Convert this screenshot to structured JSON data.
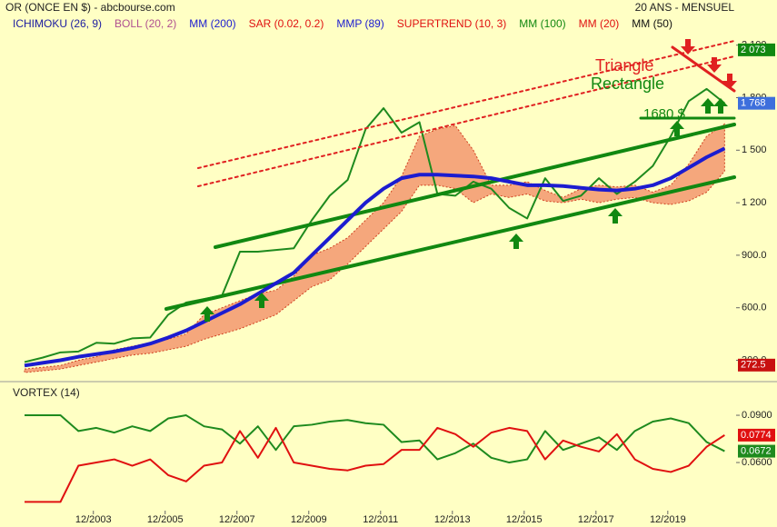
{
  "chart_data": [
    {
      "type": "line",
      "title": "OR (ONCE EN $) - abcbourse.com",
      "period": "20 ANS - MENSUEL",
      "indicators": [
        {
          "name": "ICHIMOKU (26, 9)",
          "color": "#1c1ca0"
        },
        {
          "name": "BOLL (20, 2)",
          "color": "#b05090"
        },
        {
          "name": "MM (200)",
          "color": "#1c1cd0"
        },
        {
          "name": "SAR (0.02, 0.2)",
          "color": "#e01010"
        },
        {
          "name": "MMP (89)",
          "color": "#1c1cd0"
        },
        {
          "name": "SUPERTREND (10, 3)",
          "color": "#e01010"
        },
        {
          "name": "MM (100)",
          "color": "#118811"
        },
        {
          "name": "MM (20)",
          "color": "#e01010"
        },
        {
          "name": "MM (50)",
          "color": "#111111"
        }
      ],
      "annotations": [
        "Triangle",
        "Rectangle",
        "1680 $"
      ],
      "x": [
        2002.0,
        2002.5,
        2003.0,
        2003.5,
        2004.0,
        2004.5,
        2005.0,
        2005.5,
        2006.0,
        2006.5,
        2007.0,
        2007.5,
        2008.0,
        2008.5,
        2009.0,
        2009.5,
        2010.0,
        2010.5,
        2011.0,
        2011.5,
        2012.0,
        2012.5,
        2013.0,
        2013.5,
        2014.0,
        2014.5,
        2015.0,
        2015.5,
        2016.0,
        2016.5,
        2017.0,
        2017.5,
        2018.0,
        2018.5,
        2019.0,
        2019.5,
        2020.0,
        2020.5,
        2021.0,
        2021.5
      ],
      "price": {
        "color": "#1e8a1e",
        "values": [
          290,
          315,
          345,
          350,
          400,
          395,
          425,
          430,
          560,
          630,
          650,
          670,
          920,
          920,
          930,
          940,
          1100,
          1240,
          1330,
          1620,
          1740,
          1600,
          1660,
          1250,
          1240,
          1320,
          1280,
          1170,
          1110,
          1340,
          1210,
          1240,
          1340,
          1250,
          1320,
          1410,
          1580,
          1780,
          1850,
          1768
        ]
      },
      "cloud": {
        "color": "#f5a77c",
        "upper": [
          250,
          260,
          270,
          300,
          320,
          360,
          380,
          400,
          420,
          450,
          560,
          600,
          640,
          680,
          700,
          780,
          900,
          940,
          1000,
          1100,
          1200,
          1350,
          1580,
          1620,
          1640,
          1500,
          1300,
          1300,
          1320,
          1270,
          1230,
          1280,
          1300,
          1290,
          1300,
          1260,
          1300,
          1420,
          1580,
          1650
        ],
        "lower": [
          230,
          240,
          250,
          270,
          290,
          310,
          330,
          340,
          360,
          380,
          420,
          450,
          480,
          520,
          560,
          640,
          720,
          760,
          850,
          950,
          1050,
          1150,
          1300,
          1300,
          1280,
          1200,
          1250,
          1230,
          1250,
          1210,
          1200,
          1220,
          1200,
          1220,
          1230,
          1200,
          1190,
          1210,
          1260,
          1380
        ]
      },
      "series": [
        {
          "name": "MM (200)",
          "color": "#1c1cd0",
          "values": [
            270,
            285,
            300,
            320,
            335,
            350,
            370,
            395,
            430,
            470,
            520,
            570,
            620,
            680,
            740,
            800,
            900,
            1000,
            1100,
            1200,
            1280,
            1340,
            1360,
            1360,
            1355,
            1350,
            1340,
            1320,
            1300,
            1300,
            1295,
            1285,
            1275,
            1270,
            1280,
            1300,
            1340,
            1400,
            1460,
            1510
          ]
        }
      ],
      "markers": [
        {
          "value": 2073,
          "label": "2 073",
          "color": "#118811"
        },
        {
          "value": 1768,
          "label": "1 768",
          "color": "#3d6fdc"
        },
        {
          "value": 272.5,
          "label": "272.5",
          "color": "#c81010"
        }
      ],
      "xlim": [
        2001.62,
        2021.82
      ],
      "ylim": [
        230,
        2280
      ],
      "yticks": [
        {
          "value": 300,
          "label": "300.0"
        },
        {
          "value": 600,
          "label": "600.0"
        },
        {
          "value": 900,
          "label": "900.0"
        },
        {
          "value": 1200,
          "label": "1 200"
        },
        {
          "value": 1500,
          "label": "1 500"
        },
        {
          "value": 1800,
          "label": "1 800"
        },
        {
          "value": 2100,
          "label": "2 100"
        }
      ]
    },
    {
      "type": "line",
      "title": "VORTEX (14)",
      "x": [
        2002.0,
        2002.5,
        2003.0,
        2003.5,
        2004.0,
        2004.5,
        2005.0,
        2005.5,
        2006.0,
        2006.5,
        2007.0,
        2007.5,
        2008.0,
        2008.5,
        2009.0,
        2009.5,
        2010.0,
        2010.5,
        2011.0,
        2011.5,
        2012.0,
        2012.5,
        2013.0,
        2013.5,
        2014.0,
        2014.5,
        2015.0,
        2015.5,
        2016.0,
        2016.5,
        2017.0,
        2017.5,
        2018.0,
        2018.5,
        2019.0,
        2019.5,
        2020.0,
        2020.5,
        2021.0,
        2021.5
      ],
      "series": [
        {
          "color": "#1e8a1e",
          "values": [
            0.09,
            0.09,
            0.09,
            0.08,
            0.082,
            0.079,
            0.083,
            0.08,
            0.088,
            0.09,
            0.083,
            0.081,
            0.072,
            0.083,
            0.068,
            0.083,
            0.084,
            0.086,
            0.087,
            0.085,
            0.084,
            0.073,
            0.074,
            0.062,
            0.066,
            0.072,
            0.063,
            0.06,
            0.062,
            0.08,
            0.068,
            0.072,
            0.076,
            0.068,
            0.08,
            0.086,
            0.088,
            0.085,
            0.073,
            0.0672
          ]
        },
        {
          "color": "#e01010",
          "values": [
            0.035,
            0.035,
            0.035,
            0.058,
            0.06,
            0.062,
            0.058,
            0.062,
            0.052,
            0.048,
            0.058,
            0.06,
            0.08,
            0.063,
            0.082,
            0.06,
            0.058,
            0.056,
            0.055,
            0.058,
            0.059,
            0.068,
            0.068,
            0.082,
            0.078,
            0.07,
            0.079,
            0.082,
            0.08,
            0.062,
            0.074,
            0.07,
            0.067,
            0.078,
            0.062,
            0.056,
            0.054,
            0.058,
            0.07,
            0.0774
          ]
        }
      ],
      "markers": [
        {
          "value": 0.0774,
          "label": "0.0774",
          "color": "#e01010"
        },
        {
          "value": 0.0672,
          "label": "0.0672",
          "color": "#1e8a1e"
        }
      ],
      "xlim": [
        2001.62,
        2021.82
      ],
      "ylim": [
        0.0306,
        0.0981
      ],
      "yticks": [
        {
          "value": 0.06,
          "label": "0.0600"
        },
        {
          "value": 0.09,
          "label": "0.0900"
        }
      ],
      "xticks": [
        {
          "value": 2003.917,
          "label": "12/2003"
        },
        {
          "value": 2005.917,
          "label": "12/2005"
        },
        {
          "value": 2007.917,
          "label": "12/2007"
        },
        {
          "value": 2009.917,
          "label": "12/2009"
        },
        {
          "value": 2011.917,
          "label": "12/2011"
        },
        {
          "value": 2013.917,
          "label": "12/2013"
        },
        {
          "value": 2015.917,
          "label": "12/2015"
        },
        {
          "value": 2017.917,
          "label": "12/2017"
        },
        {
          "value": 2019.917,
          "label": "12/2019"
        }
      ]
    }
  ]
}
